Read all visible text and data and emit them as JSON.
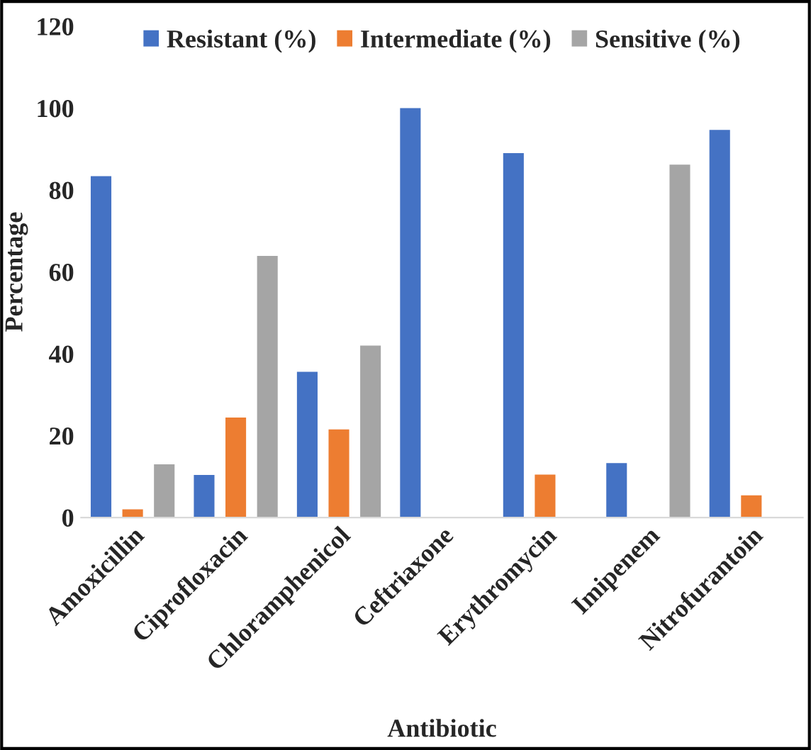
{
  "chart_data": {
    "type": "bar",
    "xlabel": "Antibiotic",
    "ylabel": "Percentage",
    "categories": [
      "Amoxicillin",
      "Ciprofloxacin",
      "Chloramphenicol",
      "Ceftriaxone",
      "Erythromycin",
      "Imipenem",
      "Nitrofurantoin"
    ],
    "series": [
      {
        "name": "Resistant (%)",
        "color": "#4472c4",
        "values": [
          83.4,
          10.4,
          35.6,
          100,
          89,
          13.3,
          94.7
        ]
      },
      {
        "name": "Intermediate (%)",
        "color": "#ed7d31",
        "values": [
          2,
          24.4,
          21.5,
          0,
          10.5,
          0,
          5.4
        ]
      },
      {
        "name": "Sensitive (%)",
        "color": "#a5a5a5",
        "values": [
          13,
          63.9,
          42,
          0,
          0,
          86.2,
          0
        ]
      }
    ],
    "ylim": [
      0,
      120
    ],
    "yticks": [
      0,
      20,
      40,
      60,
      80,
      100,
      120
    ],
    "grid": false,
    "legend": "top"
  }
}
